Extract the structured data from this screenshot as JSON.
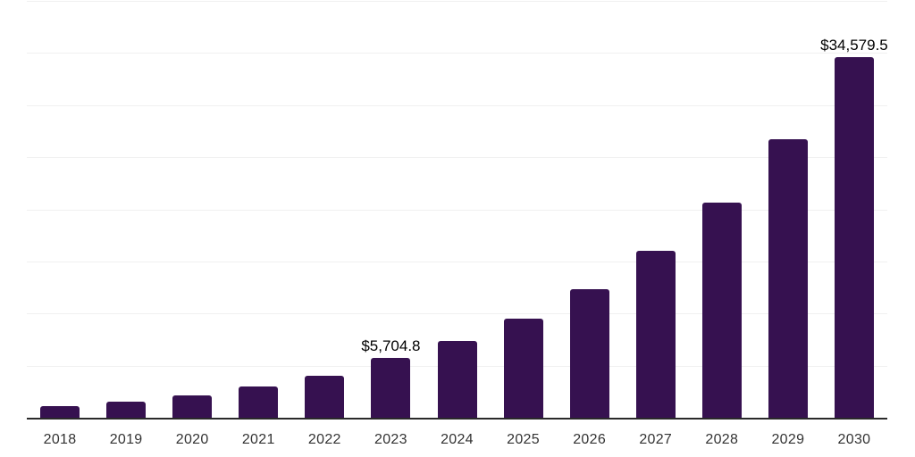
{
  "chart_data": {
    "type": "bar",
    "categories": [
      "2018",
      "2019",
      "2020",
      "2021",
      "2022",
      "2023",
      "2024",
      "2025",
      "2026",
      "2027",
      "2028",
      "2029",
      "2030"
    ],
    "values": [
      1100,
      1550,
      2150,
      3000,
      4050,
      5704.8,
      7380,
      9550,
      12350,
      15975,
      20665,
      26730,
      34579.5
    ],
    "point_labels": [
      "",
      "",
      "",
      "",
      "",
      "$5,704.8",
      "",
      "",
      "",
      "",
      "",
      "",
      "$34,579.5"
    ],
    "ylim": [
      0,
      40000
    ],
    "gridline_step": 5000,
    "grid": "horizontal",
    "legend": "none",
    "colors": {
      "bar": "#361150",
      "axis": "#2a2a2a",
      "gridline": "#f0f0f0",
      "tick_label": "#333333",
      "data_label": "#000000",
      "background": "#ffffff"
    }
  }
}
